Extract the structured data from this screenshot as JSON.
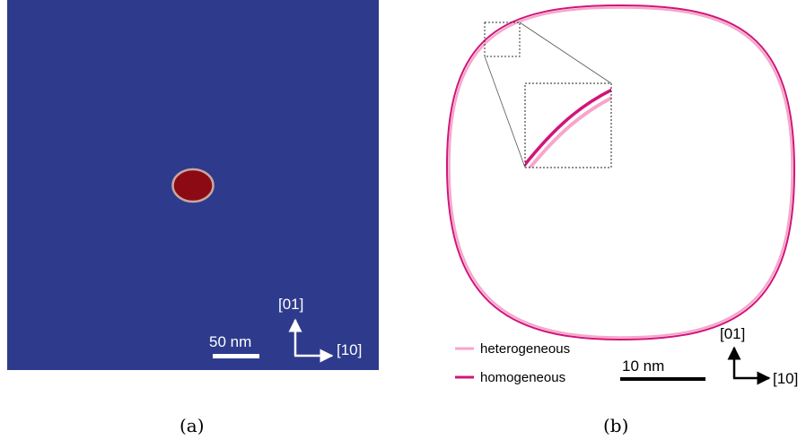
{
  "panel_a": {
    "background_color": "#2E3B8D",
    "particle_color": "#8B0A14",
    "particle_rim_color": "#C8A79F",
    "orientation": {
      "up_label": "[01]",
      "right_label": "[10]"
    },
    "scale_bar": {
      "label": "50 nm"
    },
    "caption": "(a)"
  },
  "panel_b": {
    "legend": {
      "heterogeneous": {
        "label": "heterogeneous",
        "color": "#F7A6CB"
      },
      "homogeneous": {
        "label": "homogeneous",
        "color": "#D1147A"
      }
    },
    "scale_bar": {
      "label": "10 nm"
    },
    "orientation": {
      "up_label": "[01]",
      "right_label": "[10]"
    },
    "caption": "(b)"
  }
}
